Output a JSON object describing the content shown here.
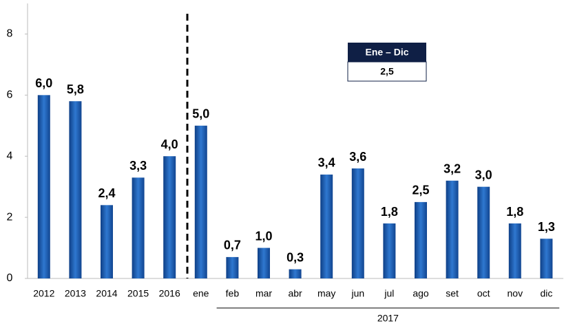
{
  "chart_data": {
    "type": "bar",
    "categories": [
      "2012",
      "2013",
      "2014",
      "2015",
      "2016",
      "ene",
      "feb",
      "mar",
      "abr",
      "may",
      "jun",
      "jul",
      "ago",
      "set",
      "oct",
      "nov",
      "dic"
    ],
    "values": [
      6.0,
      5.8,
      2.4,
      3.3,
      4.0,
      5.0,
      0.7,
      1.0,
      0.3,
      3.4,
      3.6,
      1.8,
      2.5,
      3.2,
      3.0,
      1.8,
      1.3
    ],
    "value_labels": [
      "6,0",
      "5,8",
      "2,4",
      "3,3",
      "4,0",
      "5,0",
      "0,7",
      "1,0",
      "0,3",
      "3,4",
      "3,6",
      "1,8",
      "2,5",
      "3,2",
      "3,0",
      "1,8",
      "1,3"
    ],
    "color": "#1f5fb5",
    "ylim": [
      0,
      9
    ],
    "yticks": [
      0,
      2,
      4,
      6,
      8
    ],
    "grid": false,
    "group_label": "2017",
    "annotation": {
      "title": "Ene – Dic",
      "value": "2,5"
    }
  }
}
